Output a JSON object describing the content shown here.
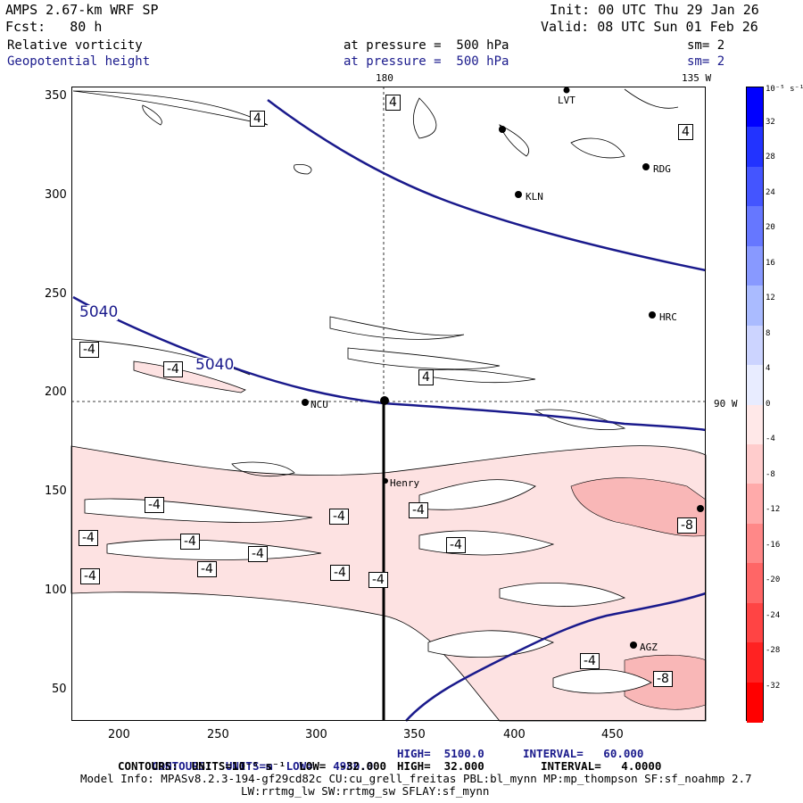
{
  "header": {
    "model": "AMPS 2.67-km WRF SP",
    "init": "Init: 00 UTC Thu 29 Jan 26",
    "fcst": "Fcst:   80 h",
    "valid": "Valid: 08 UTC Sun 01 Feb 26",
    "field1_name": "Relative vorticity",
    "field1_level": "at pressure =  500 hPa",
    "field1_sm": "sm= 2",
    "field2_name": "Geopotential height",
    "field2_level": "at pressure =  500 hPa",
    "field2_sm": "sm= 2"
  },
  "map_labels": {
    "lon_180": "180",
    "lon_135w": "135 W",
    "lat_90w": "90 W",
    "stations": [
      "LVT",
      "RDG",
      "KLN",
      "HRC",
      "NCU",
      "Henry",
      "AGZ"
    ]
  },
  "contour_labels": {
    "height": [
      "5040",
      "5040"
    ],
    "vort_pos": [
      "4",
      "4",
      "4",
      "4"
    ],
    "vort_neg": [
      "-4",
      "-4",
      "-4",
      "-4",
      "-4",
      "-4",
      "-4",
      "-4",
      "-4",
      "-4",
      "-4",
      "-4",
      "-4",
      "-4",
      "-8",
      "-8"
    ]
  },
  "axes": {
    "x_ticks": [
      "200",
      "250",
      "300",
      "350",
      "400",
      "450"
    ],
    "y_ticks": [
      "350",
      "300",
      "250",
      "200",
      "150",
      "100",
      "50"
    ]
  },
  "colorbar": {
    "units": "10⁻⁵ s⁻¹",
    "labels": [
      "32",
      "28",
      "24",
      "20",
      "16",
      "12",
      "8",
      "4",
      "0",
      "-4",
      "-8",
      "-12",
      "-16",
      "-20",
      "-24",
      "-28",
      "-32"
    ],
    "colors": [
      "#0000ff",
      "#2233ff",
      "#4455ff",
      "#6677ff",
      "#8899ff",
      "#aabbff",
      "#ccd4ff",
      "#e8ecff",
      "#ffffff",
      "#ffe8e8",
      "#ffcccc",
      "#ffaaaa",
      "#ff8888",
      "#ff6666",
      "#ff4444",
      "#ff2222",
      "#ff0000"
    ]
  },
  "footer": {
    "line1_a": "CONTOURS:  UNITS=m  LOW=   4980.0",
    "line1_b": "HIGH=  5100.0",
    "line1_c": "INTERVAL=   60.000",
    "line2_a": "CONTOURS:  UNITS=10⁻⁵ s⁻¹  LOW=  -32.000",
    "line2_b": "HIGH=  32.000",
    "line2_c": "INTERVAL=   4.0000",
    "line3": "Model Info: MPASv8.2.3-194-gf29cd82c CU:cu_grell_freitas PBL:bl_mynn MP:mp_thompson SF:sf_noahmp 2.7",
    "line4": "LW:rrtmg_lw SW:rrtmg_sw SFLAY:sf_mynn"
  }
}
